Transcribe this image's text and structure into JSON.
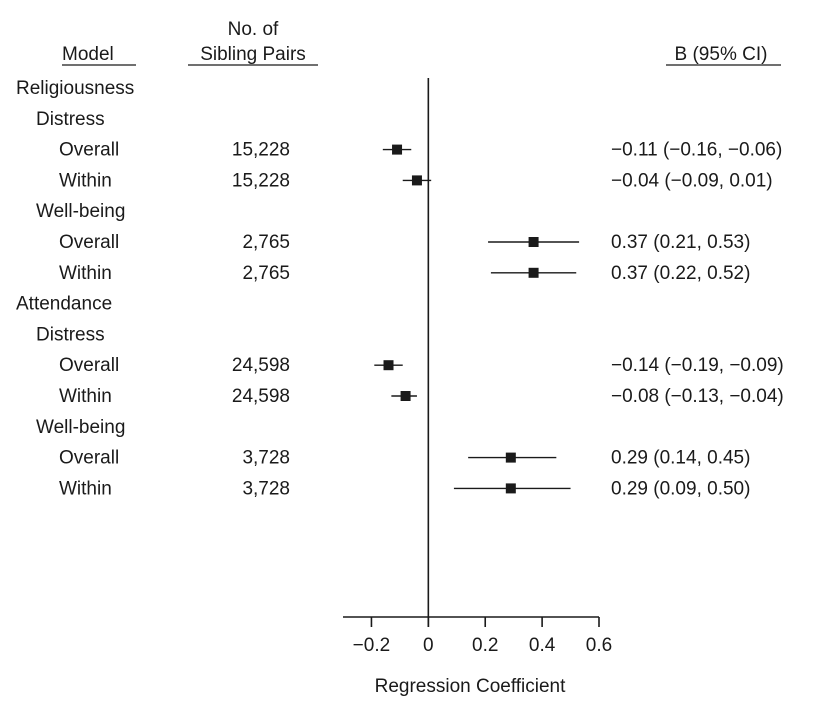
{
  "header": {
    "model": "Model",
    "pairs_line1": "No. of",
    "pairs_line2": "Sibling Pairs",
    "estimate": "B (95% CI)"
  },
  "chart_data": {
    "type": "forest",
    "xlabel": "Regression Coefficient",
    "xlim": [
      -0.3,
      0.6
    ],
    "xticks": [
      -0.2,
      0,
      0.2,
      0.4,
      0.6
    ],
    "xtick_labels": [
      "−0.2",
      "0",
      "0.2",
      "0.4",
      "0.6"
    ],
    "reference_line": 0,
    "rows": [
      {
        "label": "Religiousness",
        "level": 0
      },
      {
        "label": "Distress",
        "level": 1
      },
      {
        "label": "Overall",
        "level": 2,
        "n": "15,228",
        "est": -0.11,
        "lo": -0.16,
        "hi": -0.06,
        "text": "−0.11 (−0.16, −0.06)"
      },
      {
        "label": "Within",
        "level": 2,
        "n": "15,228",
        "est": -0.04,
        "lo": -0.09,
        "hi": 0.01,
        "text": "−0.04 (−0.09, 0.01)"
      },
      {
        "label": "Well-being",
        "level": 1
      },
      {
        "label": "Overall",
        "level": 2,
        "n": "2,765",
        "est": 0.37,
        "lo": 0.21,
        "hi": 0.53,
        "text": "0.37 (0.21, 0.53)"
      },
      {
        "label": "Within",
        "level": 2,
        "n": "2,765",
        "est": 0.37,
        "lo": 0.22,
        "hi": 0.52,
        "text": "0.37 (0.22, 0.52)"
      },
      {
        "label": "Attendance",
        "level": 0
      },
      {
        "label": "Distress",
        "level": 1
      },
      {
        "label": "Overall",
        "level": 2,
        "n": "24,598",
        "est": -0.14,
        "lo": -0.19,
        "hi": -0.09,
        "text": "−0.14 (−0.19, −0.09)"
      },
      {
        "label": "Within",
        "level": 2,
        "n": "24,598",
        "est": -0.08,
        "lo": -0.13,
        "hi": -0.04,
        "text": "−0.08 (−0.13, −0.04)"
      },
      {
        "label": "Well-being",
        "level": 1
      },
      {
        "label": "Overall",
        "level": 2,
        "n": "3,728",
        "est": 0.29,
        "lo": 0.14,
        "hi": 0.45,
        "text": "0.29 (0.14, 0.45)"
      },
      {
        "label": "Within",
        "level": 2,
        "n": "3,728",
        "est": 0.29,
        "lo": 0.09,
        "hi": 0.5,
        "text": "0.29 (0.09, 0.50)"
      }
    ]
  }
}
